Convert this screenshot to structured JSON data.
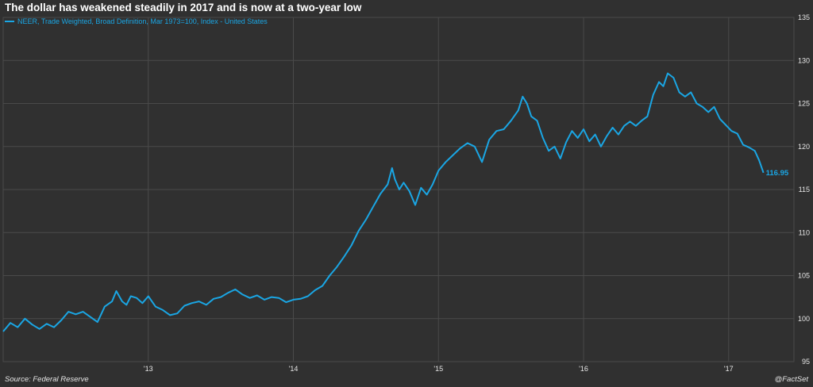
{
  "chart_data": {
    "type": "line",
    "title": "The dollar has weakened steadily in 2017 and is now at a two-year low",
    "series": [
      {
        "name": "NEER, Trade Weighted, Broad Definition, Mar 1973=100, Index - United States",
        "color": "#1aa6e4",
        "points": [
          [
            2012.0,
            98.5
          ],
          [
            2012.05,
            99.5
          ],
          [
            2012.1,
            99.0
          ],
          [
            2012.15,
            100.0
          ],
          [
            2012.2,
            99.3
          ],
          [
            2012.25,
            98.8
          ],
          [
            2012.3,
            99.4
          ],
          [
            2012.35,
            99.0
          ],
          [
            2012.4,
            99.8
          ],
          [
            2012.45,
            100.8
          ],
          [
            2012.5,
            100.5
          ],
          [
            2012.55,
            100.8
          ],
          [
            2012.6,
            100.2
          ],
          [
            2012.65,
            99.6
          ],
          [
            2012.7,
            101.4
          ],
          [
            2012.75,
            102.0
          ],
          [
            2012.78,
            103.2
          ],
          [
            2012.82,
            102.0
          ],
          [
            2012.85,
            101.6
          ],
          [
            2012.88,
            102.6
          ],
          [
            2012.92,
            102.4
          ],
          [
            2012.96,
            101.8
          ],
          [
            2013.0,
            102.6
          ],
          [
            2013.05,
            101.4
          ],
          [
            2013.1,
            101.0
          ],
          [
            2013.15,
            100.4
          ],
          [
            2013.2,
            100.6
          ],
          [
            2013.25,
            101.5
          ],
          [
            2013.3,
            101.8
          ],
          [
            2013.35,
            102.0
          ],
          [
            2013.4,
            101.6
          ],
          [
            2013.45,
            102.3
          ],
          [
            2013.5,
            102.5
          ],
          [
            2013.55,
            103.0
          ],
          [
            2013.6,
            103.4
          ],
          [
            2013.65,
            102.8
          ],
          [
            2013.7,
            102.4
          ],
          [
            2013.75,
            102.7
          ],
          [
            2013.8,
            102.2
          ],
          [
            2013.85,
            102.5
          ],
          [
            2013.9,
            102.4
          ],
          [
            2013.95,
            101.9
          ],
          [
            2014.0,
            102.2
          ],
          [
            2014.05,
            102.3
          ],
          [
            2014.1,
            102.6
          ],
          [
            2014.15,
            103.3
          ],
          [
            2014.2,
            103.8
          ],
          [
            2014.25,
            105.0
          ],
          [
            2014.3,
            106.0
          ],
          [
            2014.35,
            107.2
          ],
          [
            2014.4,
            108.5
          ],
          [
            2014.45,
            110.2
          ],
          [
            2014.5,
            111.5
          ],
          [
            2014.55,
            113.0
          ],
          [
            2014.6,
            114.5
          ],
          [
            2014.65,
            115.6
          ],
          [
            2014.68,
            117.5
          ],
          [
            2014.7,
            116.2
          ],
          [
            2014.73,
            115.0
          ],
          [
            2014.76,
            115.8
          ],
          [
            2014.8,
            114.8
          ],
          [
            2014.84,
            113.2
          ],
          [
            2014.88,
            115.2
          ],
          [
            2014.92,
            114.4
          ],
          [
            2014.96,
            115.6
          ],
          [
            2015.0,
            117.2
          ],
          [
            2015.05,
            118.2
          ],
          [
            2015.1,
            119.0
          ],
          [
            2015.15,
            119.8
          ],
          [
            2015.2,
            120.4
          ],
          [
            2015.25,
            120.0
          ],
          [
            2015.3,
            118.2
          ],
          [
            2015.35,
            120.8
          ],
          [
            2015.4,
            121.8
          ],
          [
            2015.45,
            122.0
          ],
          [
            2015.5,
            123.0
          ],
          [
            2015.55,
            124.2
          ],
          [
            2015.58,
            125.8
          ],
          [
            2015.61,
            125.0
          ],
          [
            2015.64,
            123.5
          ],
          [
            2015.68,
            123.0
          ],
          [
            2015.72,
            121.0
          ],
          [
            2015.76,
            119.5
          ],
          [
            2015.8,
            120.0
          ],
          [
            2015.84,
            118.6
          ],
          [
            2015.88,
            120.5
          ],
          [
            2015.92,
            121.8
          ],
          [
            2015.96,
            121.0
          ],
          [
            2016.0,
            122.0
          ],
          [
            2016.04,
            120.6
          ],
          [
            2016.08,
            121.4
          ],
          [
            2016.12,
            120.0
          ],
          [
            2016.16,
            121.2
          ],
          [
            2016.2,
            122.2
          ],
          [
            2016.24,
            121.4
          ],
          [
            2016.28,
            122.4
          ],
          [
            2016.32,
            122.9
          ],
          [
            2016.36,
            122.4
          ],
          [
            2016.4,
            123.0
          ],
          [
            2016.44,
            123.5
          ],
          [
            2016.48,
            126.0
          ],
          [
            2016.52,
            127.5
          ],
          [
            2016.55,
            127.0
          ],
          [
            2016.58,
            128.5
          ],
          [
            2016.62,
            128.0
          ],
          [
            2016.66,
            126.3
          ],
          [
            2016.7,
            125.8
          ],
          [
            2016.74,
            126.3
          ],
          [
            2016.78,
            125.0
          ],
          [
            2016.82,
            124.6
          ],
          [
            2016.86,
            124.0
          ],
          [
            2016.9,
            124.6
          ],
          [
            2016.94,
            123.2
          ],
          [
            2016.98,
            122.5
          ],
          [
            2017.02,
            121.8
          ],
          [
            2017.06,
            121.5
          ],
          [
            2017.1,
            120.2
          ],
          [
            2017.14,
            119.9
          ],
          [
            2017.18,
            119.5
          ],
          [
            2017.21,
            118.4
          ],
          [
            2017.24,
            116.95
          ]
        ]
      }
    ],
    "last_value_label": "116.95",
    "x_ticks": [
      {
        "value": 2013,
        "label": "'13"
      },
      {
        "value": 2014,
        "label": "'14"
      },
      {
        "value": 2015,
        "label": "'15"
      },
      {
        "value": 2016,
        "label": "'16"
      },
      {
        "value": 2017,
        "label": "'17"
      }
    ],
    "xlim": [
      2012.0,
      2017.45
    ],
    "y_ticks": [
      95,
      100,
      105,
      110,
      115,
      120,
      125,
      130,
      135
    ],
    "ylim": [
      95,
      135
    ],
    "y_axis_side": "right",
    "grid": true,
    "legend_placement": "top-left",
    "colors": {
      "background": "#303030",
      "grid": "#4a4a4a",
      "line": "#1aa6e4",
      "text": "#e6e6e6"
    }
  },
  "footer": {
    "source": "Source: Federal Reserve",
    "credit": "@FactSet"
  }
}
